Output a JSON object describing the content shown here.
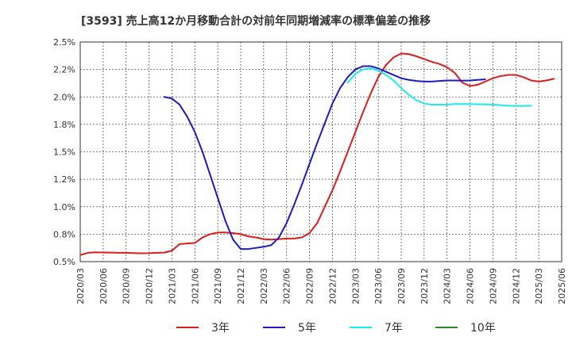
{
  "chart_data": {
    "type": "line",
    "title": "[3593]  売上高12か月移動合計の対前年同期増減率の標準偏差の推移",
    "xlabel": "",
    "ylabel": "",
    "ylim": [
      0.5,
      2.5
    ],
    "y_ticks": [
      0.5,
      0.75,
      1.0,
      1.25,
      1.5,
      1.75,
      2.0,
      2.25,
      2.5
    ],
    "y_tick_labels": [
      "0.5%",
      "0.8%",
      "1.0%",
      "1.2%",
      "1.5%",
      "1.8%",
      "2.0%",
      "2.2%",
      "2.5%"
    ],
    "x_tick_labels": [
      "2020/03",
      "2020/06",
      "2020/09",
      "2020/12",
      "2021/03",
      "2021/06",
      "2021/09",
      "2021/12",
      "2022/03",
      "2022/06",
      "2022/09",
      "2022/12",
      "2023/03",
      "2023/06",
      "2023/09",
      "2023/12",
      "2024/03",
      "2024/06",
      "2024/09",
      "2024/12",
      "2025/03",
      "2025/06"
    ],
    "grid": true,
    "legend_position": "bottom",
    "series": [
      {
        "name": "3年",
        "color": "#dd1c1c",
        "start": "2020/03",
        "values": [
          0.56,
          0.58,
          0.585,
          0.583,
          0.582,
          0.58,
          0.58,
          0.578,
          0.576,
          0.577,
          0.58,
          0.582,
          0.6,
          0.66,
          0.665,
          0.67,
          0.72,
          0.75,
          0.765,
          0.765,
          0.76,
          0.75,
          0.73,
          0.72,
          0.705,
          0.7,
          0.705,
          0.71,
          0.71,
          0.72,
          0.76,
          0.85,
          1.0,
          1.15,
          1.32,
          1.5,
          1.68,
          1.86,
          2.03,
          2.18,
          2.29,
          2.36,
          2.395,
          2.39,
          2.37,
          2.345,
          2.32,
          2.3,
          2.27,
          2.22,
          2.13,
          2.1,
          2.11,
          2.14,
          2.17,
          2.19,
          2.2,
          2.2,
          2.18,
          2.15,
          2.14,
          2.15,
          2.165
        ]
      },
      {
        "name": "5年",
        "color": "#1b1bc4",
        "start": "2021/02",
        "values": [
          2.0,
          1.985,
          1.93,
          1.82,
          1.68,
          1.5,
          1.29,
          1.08,
          0.87,
          0.7,
          0.615,
          0.615,
          0.625,
          0.635,
          0.65,
          0.72,
          0.85,
          1.02,
          1.2,
          1.39,
          1.58,
          1.76,
          1.94,
          2.08,
          2.18,
          2.25,
          2.28,
          2.28,
          2.26,
          2.23,
          2.2,
          2.17,
          2.155,
          2.145,
          2.14,
          2.14,
          2.145,
          2.15,
          2.15,
          2.148,
          2.15,
          2.155,
          2.16
        ]
      },
      {
        "name": "7年",
        "color": "#1eeaea",
        "start": "2023/02",
        "values": [
          2.13,
          2.21,
          2.25,
          2.26,
          2.24,
          2.2,
          2.15,
          2.08,
          2.02,
          1.97,
          1.94,
          1.93,
          1.93,
          1.93,
          1.935,
          1.935,
          1.935,
          1.933,
          1.932,
          1.93,
          1.925,
          1.92,
          1.918,
          1.918,
          1.92
        ]
      },
      {
        "name": "10年",
        "color": "#2a8a2a",
        "start": "",
        "values": []
      }
    ]
  }
}
